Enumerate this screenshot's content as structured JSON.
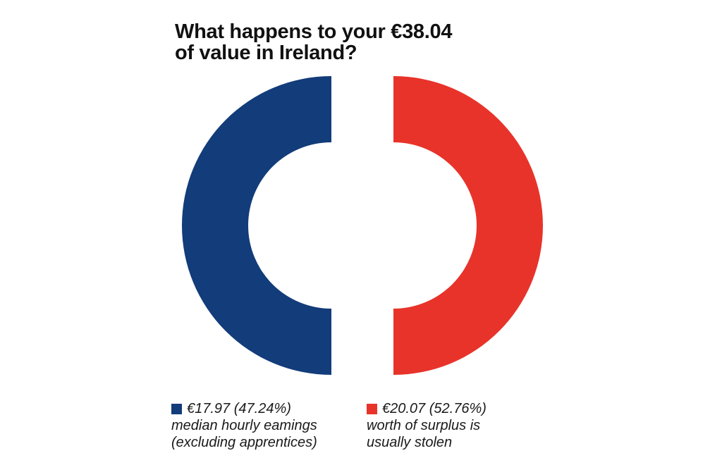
{
  "chart_data": {
    "type": "pie",
    "style": "donut, two halves split vertically",
    "title_lines": [
      "What happens to your €38.04",
      "of value in Ireland?"
    ],
    "total": 38.04,
    "categories": [
      "median hourly eamings (excluding apprentices)",
      "worth of surplus is usually stolen"
    ],
    "values": [
      17.97,
      20.07
    ],
    "percentages": [
      47.24,
      52.76
    ],
    "colors": [
      "#123c7a",
      "#e8332a"
    ],
    "legend": [
      {
        "value_label": "€17.97 (47.24%)",
        "lines": [
          "median hourly eamings",
          "(excluding apprentices)"
        ],
        "color": "#123c7a"
      },
      {
        "value_label": "€20.07 (52.76%)",
        "lines": [
          "worth of surplus is",
          "usually stolen"
        ],
        "color": "#e8332a"
      }
    ],
    "legend_position": "bottom"
  }
}
